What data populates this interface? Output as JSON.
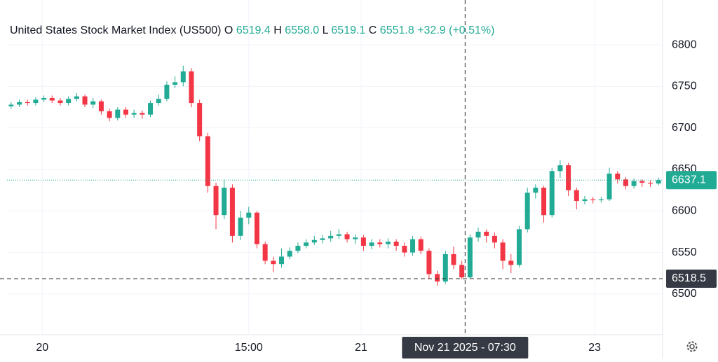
{
  "chart_data": {
    "type": "candlestick",
    "title": "United States Stock Market Index (US500)",
    "legend": [
      {
        "key": "O",
        "text": "6519.4"
      },
      {
        "key": "H",
        "text": "6558.0"
      },
      {
        "key": "L",
        "text": "6519.1"
      },
      {
        "key": "C",
        "text": "6551.8"
      }
    ],
    "change": "+32.9 (+0.51%)",
    "up_color": "#22ab94",
    "down_color": "#f23645",
    "open": [
      6726,
      6728,
      6731,
      6730,
      6734,
      6736,
      6733,
      6730,
      6735,
      6738,
      6728,
      6732,
      6720,
      6712,
      6722,
      6716,
      6718,
      6716,
      6730,
      6735,
      6752,
      6755,
      6768,
      6730,
      6690,
      6630,
      6595,
      6628,
      6570,
      6592,
      6598,
      6560,
      6540,
      6536,
      6545,
      6552,
      6558,
      6562,
      6565,
      6567,
      6570,
      6572,
      6566,
      6568,
      6558,
      6562,
      6560,
      6563,
      6558,
      6550,
      6566,
      6552,
      6524,
      6515,
      6548,
      6535,
      6520,
      6568,
      6575,
      6570,
      6562,
      6540,
      6535,
      6578,
      6622,
      6628,
      6595,
      6648,
      6655,
      6625,
      6612,
      6614,
      6613,
      6614,
      6645,
      6638,
      6630,
      6636,
      6634,
      6633
    ],
    "high": [
      6731,
      6734,
      6734,
      6737,
      6739,
      6739,
      6736,
      6738,
      6742,
      6740,
      6736,
      6734,
      6723,
      6725,
      6725,
      6722,
      6721,
      6733,
      6740,
      6756,
      6762,
      6775,
      6772,
      6734,
      6694,
      6634,
      6638,
      6632,
      6600,
      6605,
      6600,
      6563,
      6545,
      6555,
      6556,
      6562,
      6566,
      6570,
      6571,
      6576,
      6578,
      6575,
      6572,
      6571,
      6566,
      6566,
      6567,
      6566,
      6562,
      6570,
      6569,
      6555,
      6528,
      6552,
      6557,
      6540,
      6572,
      6580,
      6578,
      6574,
      6566,
      6548,
      6582,
      6628,
      6632,
      6630,
      6652,
      6661,
      6658,
      6628,
      6618,
      6617,
      6617,
      6652,
      6648,
      6641,
      6639,
      6638,
      6637,
      6640
    ],
    "low": [
      6723,
      6725,
      6727,
      6727,
      6731,
      6730,
      6727,
      6727,
      6732,
      6725,
      6724,
      6716,
      6708,
      6709,
      6712,
      6712,
      6711,
      6713,
      6727,
      6732,
      6748,
      6750,
      6725,
      6684,
      6622,
      6578,
      6590,
      6562,
      6565,
      6584,
      6555,
      6536,
      6526,
      6532,
      6542,
      6549,
      6555,
      6559,
      6561,
      6563,
      6566,
      6562,
      6560,
      6552,
      6554,
      6556,
      6555,
      6552,
      6545,
      6546,
      6548,
      6518,
      6510,
      6512,
      6530,
      6518,
      6518,
      6563,
      6562,
      6555,
      6530,
      6525,
      6532,
      6574,
      6615,
      6586,
      6592,
      6640,
      6618,
      6602,
      6608,
      6609,
      6610,
      6612,
      6633,
      6626,
      6627,
      6629,
      6629,
      6631
    ],
    "close": [
      6728,
      6731,
      6730,
      6734,
      6736,
      6733,
      6730,
      6735,
      6738,
      6728,
      6732,
      6720,
      6712,
      6722,
      6716,
      6718,
      6716,
      6730,
      6735,
      6752,
      6755,
      6768,
      6730,
      6690,
      6630,
      6595,
      6628,
      6570,
      6592,
      6598,
      6560,
      6540,
      6536,
      6545,
      6552,
      6558,
      6562,
      6565,
      6567,
      6570,
      6572,
      6566,
      6568,
      6558,
      6562,
      6560,
      6563,
      6558,
      6550,
      6566,
      6552,
      6524,
      6515,
      6548,
      6535,
      6520,
      6568,
      6575,
      6570,
      6562,
      6540,
      6535,
      6578,
      6622,
      6628,
      6595,
      6648,
      6655,
      6625,
      6612,
      6614,
      6613,
      6614,
      6645,
      6638,
      6630,
      6636,
      6634,
      6633,
      6637.1
    ],
    "xlim": [
      -0.5,
      79.5
    ],
    "xticks": [
      {
        "value": 3.8,
        "label": "20"
      },
      {
        "value": 29.0,
        "label": "15:00"
      },
      {
        "value": 42.7,
        "label": "21"
      },
      {
        "value": 71.2,
        "label": "23"
      }
    ],
    "ylim": [
      6451,
      6854
    ],
    "yticks": [
      6500,
      6550,
      6600,
      6650,
      6700,
      6750,
      6800
    ],
    "grid": true,
    "last_price": 6637.1,
    "crosshair": {
      "x": 55.4,
      "price": 6518.5,
      "time_label": "Nov 21 2025 - 07:30"
    }
  }
}
